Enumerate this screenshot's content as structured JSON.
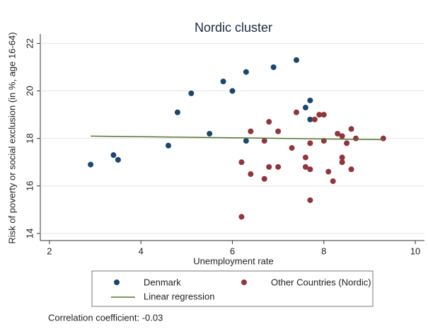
{
  "chart_data": {
    "type": "scatter",
    "title": "Nordic cluster",
    "x_label": "Unemployment rate",
    "y_label": "Risk of poverty or social exclusion (in %, age 16-64)",
    "xlim": [
      1.8,
      10.2
    ],
    "ylim": [
      13.7,
      22.4
    ],
    "xticks": [
      2,
      4,
      6,
      8,
      10
    ],
    "yticks": [
      14,
      16,
      18,
      20,
      22
    ],
    "grid": true,
    "series": [
      {
        "name": "Denmark",
        "color": "#1a476f",
        "type": "scatter",
        "x": [
          2.9,
          3.4,
          3.5,
          4.6,
          4.8,
          5.1,
          5.5,
          5.8,
          6.0,
          6.3,
          6.3,
          6.9,
          7.4,
          7.6,
          7.7,
          7.7
        ],
        "values": [
          16.9,
          17.3,
          17.1,
          17.7,
          19.1,
          19.9,
          18.2,
          20.4,
          20.0,
          20.8,
          17.9,
          21.0,
          21.3,
          19.3,
          19.6,
          18.8
        ]
      },
      {
        "name": "Other Countries (Nordic)",
        "color": "#90353b",
        "type": "scatter",
        "x": [
          6.4,
          6.2,
          6.4,
          6.2,
          6.7,
          6.7,
          6.8,
          6.8,
          7.0,
          7.0,
          7.3,
          7.4,
          7.6,
          7.6,
          7.7,
          7.7,
          7.7,
          7.8,
          7.9,
          8.0,
          8.0,
          8.1,
          8.2,
          8.3,
          8.4,
          8.4,
          8.4,
          8.5,
          8.6,
          8.6,
          8.7,
          9.3
        ],
        "values": [
          18.3,
          17.0,
          16.5,
          14.7,
          17.9,
          16.3,
          18.7,
          16.8,
          18.3,
          16.8,
          17.6,
          19.1,
          17.2,
          16.8,
          16.7,
          15.4,
          17.8,
          18.8,
          19.0,
          19.0,
          17.9,
          16.6,
          16.2,
          18.2,
          18.1,
          17.2,
          17.0,
          17.8,
          18.4,
          16.7,
          18.0,
          18.0
        ]
      },
      {
        "name": "Linear regression",
        "color": "#55752f",
        "type": "line",
        "x": [
          2.9,
          9.3
        ],
        "values": [
          18.1,
          17.95
        ]
      }
    ],
    "annotation": "Correlation coefficient: -0.03"
  }
}
